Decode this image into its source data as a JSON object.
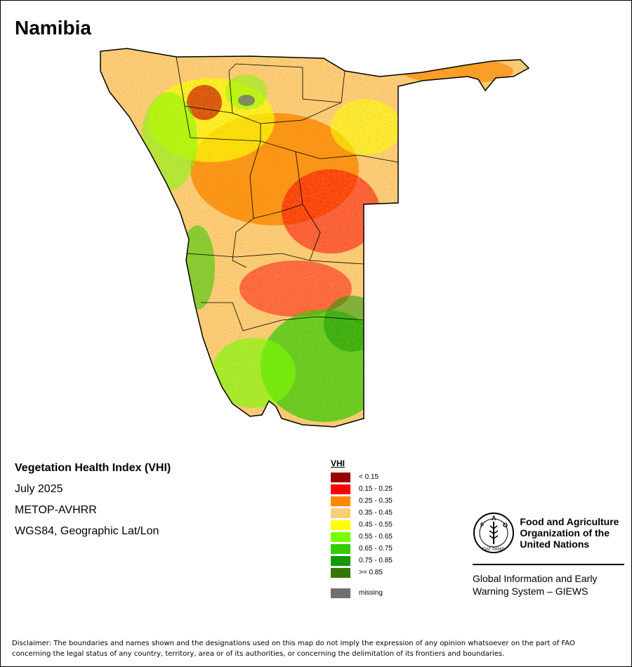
{
  "map": {
    "title": "Namibia"
  },
  "info": {
    "product": "Vegetation Health Index (VHI)",
    "period": "July 2025",
    "sensor": "METOP-AVHRR",
    "projection": "WGS84, Geographic Lat/Lon"
  },
  "legend": {
    "title": "VHI",
    "classes": [
      {
        "label": "< 0.15",
        "color": "#990000"
      },
      {
        "label": "0.15 - 0.25",
        "color": "#ff0000"
      },
      {
        "label": "0.25 - 0.35",
        "color": "#ff8800"
      },
      {
        "label": "0.35 - 0.45",
        "color": "#ffcc77"
      },
      {
        "label": "0.45 - 0.55",
        "color": "#ffff00"
      },
      {
        "label": "0.55 - 0.65",
        "color": "#77ff00"
      },
      {
        "label": "0.65 - 0.75",
        "color": "#33cc00"
      },
      {
        "label": "0.75 - 0.85",
        "color": "#119900"
      },
      {
        "label": ">= 0.85",
        "color": "#337700"
      }
    ],
    "missing": {
      "label": "missing",
      "color": "#707070"
    }
  },
  "fao": {
    "org_line1": "Food and Agriculture",
    "org_line2": "Organization of the",
    "org_line3": "United Nations",
    "logo_letters": [
      "F",
      "A",
      "O"
    ],
    "logo_motto": "FIAT PANIS",
    "giews_line1": "Global Information and Early",
    "giews_line2": "Warning System – GIEWS"
  },
  "disclaimer": {
    "line1": "Disclaimer: The boundaries and names shown and the designations used on this map do not imply the expression of any opinion whatsoever on the part of FAO",
    "line2": "concerning the legal status of any country, territory, area or of its authorities, or concerning the delimitation of its frontiers and boundaries."
  }
}
